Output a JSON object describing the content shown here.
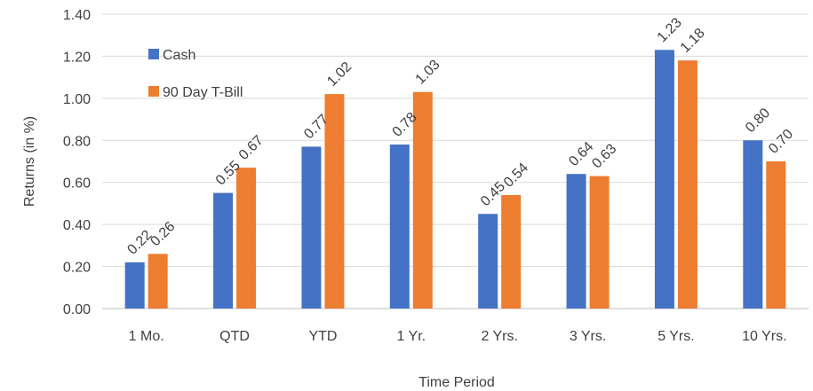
{
  "chart_data": {
    "type": "bar",
    "title": "",
    "xlabel": "Time Period",
    "ylabel": "Returns (in %)",
    "ylim": [
      0,
      1.4
    ],
    "yticks": [
      "0.00",
      "0.20",
      "0.40",
      "0.60",
      "0.80",
      "1.00",
      "1.20",
      "1.40"
    ],
    "grid": true,
    "legend_position": "top-left",
    "categories": [
      "1 Mo.",
      "QTD",
      "YTD",
      "1 Yr.",
      "2 Yrs.",
      "3 Yrs.",
      "5 Yrs.",
      "10 Yrs."
    ],
    "series": [
      {
        "name": "Cash",
        "color": "#4472C4",
        "values": [
          0.22,
          0.55,
          0.77,
          0.78,
          0.45,
          0.64,
          1.23,
          0.8
        ],
        "labels": [
          "0.22",
          "0.55",
          "0.77",
          "0.78",
          "0.45",
          "0.64",
          "1.23",
          "0.80"
        ]
      },
      {
        "name": "90 Day T-Bill",
        "color": "#ED7D31",
        "values": [
          0.26,
          0.67,
          1.02,
          1.03,
          0.54,
          0.63,
          1.18,
          0.7
        ],
        "labels": [
          "0.26",
          "0.67",
          "1.02",
          "1.03",
          "0.54",
          "0.63",
          "1.18",
          "0.70"
        ]
      }
    ]
  }
}
